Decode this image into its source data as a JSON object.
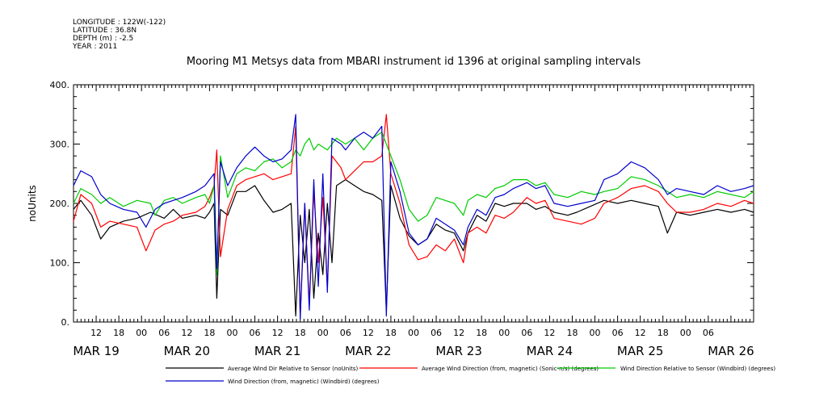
{
  "meta": {
    "longitude": "LONGITUDE : 122W(-122)",
    "latitude": "LATITUDE : 36.8N",
    "depth": "DEPTH (m) : -2.5",
    "year": "YEAR : 2011"
  },
  "chart_data": {
    "type": "line",
    "title": "Mooring M1 Metsys data from MBARI instrument id 1396 at original sampling intervals",
    "ylabel": "noUnits",
    "xlabel": "",
    "ylim": [
      0,
      400
    ],
    "xlim": [
      0,
      7.5
    ],
    "x_unit": "days since MAR 18 at 18h",
    "yticks": [
      "0.",
      "100.",
      "200.",
      "300.",
      "400."
    ],
    "hour_ticks": [
      "12",
      "18",
      "00",
      "06",
      "12",
      "18",
      "00",
      "06",
      "12",
      "18",
      "00",
      "06",
      "12",
      "18",
      "00",
      "06",
      "12",
      "18",
      "00",
      "06",
      "12",
      "18",
      "00",
      "06",
      "12",
      "18",
      "00",
      "06"
    ],
    "day_labels": [
      "MAR 19",
      "MAR 20",
      "MAR 21",
      "MAR 22",
      "MAR 23",
      "MAR 24",
      "MAR 25",
      "MAR 26"
    ],
    "grid": false,
    "legend_position": "bottom",
    "series": [
      {
        "name": "Average Wind Dir Relative to Sensor (noUnits)",
        "color": "#000000",
        "points": [
          [
            0,
            190
          ],
          [
            0.08,
            205
          ],
          [
            0.2,
            180
          ],
          [
            0.3,
            140
          ],
          [
            0.4,
            160
          ],
          [
            0.55,
            170
          ],
          [
            0.7,
            175
          ],
          [
            0.85,
            185
          ],
          [
            1.0,
            175
          ],
          [
            1.1,
            190
          ],
          [
            1.2,
            175
          ],
          [
            1.35,
            180
          ],
          [
            1.45,
            175
          ],
          [
            1.5,
            185
          ],
          [
            1.55,
            200
          ],
          [
            1.58,
            40
          ],
          [
            1.62,
            190
          ],
          [
            1.7,
            180
          ],
          [
            1.8,
            220
          ],
          [
            1.9,
            220
          ],
          [
            2.0,
            230
          ],
          [
            2.1,
            205
          ],
          [
            2.2,
            185
          ],
          [
            2.3,
            190
          ],
          [
            2.4,
            200
          ],
          [
            2.45,
            10
          ],
          [
            2.5,
            180
          ],
          [
            2.55,
            100
          ],
          [
            2.6,
            190
          ],
          [
            2.65,
            40
          ],
          [
            2.7,
            150
          ],
          [
            2.75,
            80
          ],
          [
            2.8,
            200
          ],
          [
            2.85,
            100
          ],
          [
            2.9,
            230
          ],
          [
            3.0,
            240
          ],
          [
            3.1,
            230
          ],
          [
            3.2,
            220
          ],
          [
            3.3,
            215
          ],
          [
            3.4,
            205
          ],
          [
            3.45,
            20
          ],
          [
            3.5,
            230
          ],
          [
            3.6,
            175
          ],
          [
            3.7,
            145
          ],
          [
            3.8,
            130
          ],
          [
            3.9,
            140
          ],
          [
            4.0,
            165
          ],
          [
            4.1,
            155
          ],
          [
            4.2,
            150
          ],
          [
            4.3,
            120
          ],
          [
            4.35,
            150
          ],
          [
            4.45,
            180
          ],
          [
            4.55,
            170
          ],
          [
            4.65,
            200
          ],
          [
            4.75,
            195
          ],
          [
            4.85,
            200
          ],
          [
            5.0,
            200
          ],
          [
            5.1,
            190
          ],
          [
            5.2,
            195
          ],
          [
            5.3,
            185
          ],
          [
            5.45,
            180
          ],
          [
            5.55,
            185
          ],
          [
            5.7,
            195
          ],
          [
            5.85,
            205
          ],
          [
            6.0,
            200
          ],
          [
            6.15,
            205
          ],
          [
            6.3,
            200
          ],
          [
            6.45,
            195
          ],
          [
            6.55,
            150
          ],
          [
            6.65,
            185
          ],
          [
            6.8,
            180
          ],
          [
            6.95,
            185
          ],
          [
            7.1,
            190
          ],
          [
            7.25,
            185
          ],
          [
            7.4,
            190
          ],
          [
            7.5,
            185
          ]
        ]
      },
      {
        "name": "Average Wind Direction (from, magnetic) (Sonic-n/s) (degrees)",
        "color": "#ff0000",
        "points": [
          [
            0,
            170
          ],
          [
            0.08,
            215
          ],
          [
            0.2,
            200
          ],
          [
            0.3,
            160
          ],
          [
            0.4,
            170
          ],
          [
            0.55,
            165
          ],
          [
            0.7,
            160
          ],
          [
            0.8,
            120
          ],
          [
            0.9,
            155
          ],
          [
            1.0,
            165
          ],
          [
            1.1,
            170
          ],
          [
            1.2,
            180
          ],
          [
            1.35,
            185
          ],
          [
            1.45,
            195
          ],
          [
            1.5,
            210
          ],
          [
            1.55,
            230
          ],
          [
            1.58,
            290
          ],
          [
            1.62,
            110
          ],
          [
            1.7,
            190
          ],
          [
            1.8,
            230
          ],
          [
            1.9,
            240
          ],
          [
            2.0,
            245
          ],
          [
            2.1,
            250
          ],
          [
            2.2,
            240
          ],
          [
            2.3,
            245
          ],
          [
            2.4,
            250
          ],
          [
            2.45,
            330
          ],
          [
            2.5,
            10
          ],
          [
            2.55,
            200
          ],
          [
            2.6,
            30
          ],
          [
            2.65,
            220
          ],
          [
            2.7,
            100
          ],
          [
            2.75,
            210
          ],
          [
            2.8,
            60
          ],
          [
            2.85,
            280
          ],
          [
            2.95,
            260
          ],
          [
            3.0,
            240
          ],
          [
            3.1,
            255
          ],
          [
            3.2,
            270
          ],
          [
            3.3,
            270
          ],
          [
            3.4,
            280
          ],
          [
            3.45,
            350
          ],
          [
            3.5,
            250
          ],
          [
            3.6,
            200
          ],
          [
            3.7,
            130
          ],
          [
            3.8,
            105
          ],
          [
            3.9,
            110
          ],
          [
            4.0,
            130
          ],
          [
            4.1,
            120
          ],
          [
            4.2,
            140
          ],
          [
            4.3,
            100
          ],
          [
            4.35,
            150
          ],
          [
            4.45,
            160
          ],
          [
            4.55,
            150
          ],
          [
            4.65,
            180
          ],
          [
            4.75,
            175
          ],
          [
            4.85,
            185
          ],
          [
            5.0,
            210
          ],
          [
            5.1,
            200
          ],
          [
            5.2,
            205
          ],
          [
            5.3,
            175
          ],
          [
            5.45,
            170
          ],
          [
            5.6,
            165
          ],
          [
            5.75,
            175
          ],
          [
            5.85,
            200
          ],
          [
            6.0,
            210
          ],
          [
            6.15,
            225
          ],
          [
            6.3,
            230
          ],
          [
            6.45,
            220
          ],
          [
            6.55,
            200
          ],
          [
            6.65,
            185
          ],
          [
            6.8,
            185
          ],
          [
            6.95,
            190
          ],
          [
            7.1,
            200
          ],
          [
            7.25,
            195
          ],
          [
            7.4,
            205
          ],
          [
            7.5,
            200
          ]
        ]
      },
      {
        "name": "Wind Direction Relative to Sensor (Windbird) (degrees)",
        "color": "#00cc00",
        "points": [
          [
            0,
            200
          ],
          [
            0.08,
            225
          ],
          [
            0.2,
            215
          ],
          [
            0.3,
            200
          ],
          [
            0.4,
            210
          ],
          [
            0.55,
            195
          ],
          [
            0.7,
            205
          ],
          [
            0.85,
            200
          ],
          [
            0.9,
            180
          ],
          [
            1.0,
            205
          ],
          [
            1.1,
            210
          ],
          [
            1.2,
            200
          ],
          [
            1.35,
            210
          ],
          [
            1.45,
            215
          ],
          [
            1.5,
            200
          ],
          [
            1.55,
            230
          ],
          [
            1.58,
            80
          ],
          [
            1.62,
            280
          ],
          [
            1.7,
            210
          ],
          [
            1.8,
            250
          ],
          [
            1.9,
            260
          ],
          [
            2.0,
            255
          ],
          [
            2.1,
            270
          ],
          [
            2.2,
            275
          ],
          [
            2.3,
            260
          ],
          [
            2.4,
            270
          ],
          [
            2.45,
            290
          ],
          [
            2.5,
            280
          ],
          [
            2.55,
            300
          ],
          [
            2.6,
            310
          ],
          [
            2.65,
            290
          ],
          [
            2.7,
            300
          ],
          [
            2.8,
            290
          ],
          [
            2.9,
            310
          ],
          [
            3.0,
            300
          ],
          [
            3.1,
            310
          ],
          [
            3.2,
            290
          ],
          [
            3.3,
            310
          ],
          [
            3.4,
            320
          ],
          [
            3.45,
            300
          ],
          [
            3.5,
            280
          ],
          [
            3.6,
            240
          ],
          [
            3.7,
            190
          ],
          [
            3.8,
            170
          ],
          [
            3.9,
            180
          ],
          [
            4.0,
            210
          ],
          [
            4.1,
            205
          ],
          [
            4.2,
            200
          ],
          [
            4.3,
            180
          ],
          [
            4.35,
            205
          ],
          [
            4.45,
            215
          ],
          [
            4.55,
            210
          ],
          [
            4.65,
            225
          ],
          [
            4.75,
            230
          ],
          [
            4.85,
            240
          ],
          [
            5.0,
            240
          ],
          [
            5.1,
            230
          ],
          [
            5.2,
            235
          ],
          [
            5.3,
            215
          ],
          [
            5.45,
            210
          ],
          [
            5.6,
            220
          ],
          [
            5.75,
            215
          ],
          [
            5.85,
            220
          ],
          [
            6.0,
            225
          ],
          [
            6.15,
            245
          ],
          [
            6.3,
            240
          ],
          [
            6.45,
            230
          ],
          [
            6.55,
            220
          ],
          [
            6.65,
            210
          ],
          [
            6.8,
            215
          ],
          [
            6.95,
            210
          ],
          [
            7.1,
            220
          ],
          [
            7.25,
            215
          ],
          [
            7.4,
            210
          ],
          [
            7.5,
            220
          ]
        ]
      },
      {
        "name": "Wind Direction (from, magnetic) (Windbird) (degrees)",
        "color": "#0000cc",
        "points": [
          [
            0,
            230
          ],
          [
            0.08,
            255
          ],
          [
            0.2,
            245
          ],
          [
            0.3,
            215
          ],
          [
            0.4,
            200
          ],
          [
            0.55,
            190
          ],
          [
            0.7,
            185
          ],
          [
            0.8,
            160
          ],
          [
            0.9,
            190
          ],
          [
            1.0,
            200
          ],
          [
            1.1,
            205
          ],
          [
            1.2,
            210
          ],
          [
            1.35,
            220
          ],
          [
            1.45,
            230
          ],
          [
            1.5,
            240
          ],
          [
            1.55,
            250
          ],
          [
            1.58,
            90
          ],
          [
            1.62,
            270
          ],
          [
            1.7,
            230
          ],
          [
            1.8,
            260
          ],
          [
            1.9,
            280
          ],
          [
            2.0,
            295
          ],
          [
            2.1,
            280
          ],
          [
            2.2,
            270
          ],
          [
            2.3,
            275
          ],
          [
            2.4,
            290
          ],
          [
            2.45,
            350
          ],
          [
            2.5,
            5
          ],
          [
            2.55,
            200
          ],
          [
            2.6,
            20
          ],
          [
            2.65,
            240
          ],
          [
            2.7,
            60
          ],
          [
            2.75,
            250
          ],
          [
            2.8,
            50
          ],
          [
            2.85,
            310
          ],
          [
            2.95,
            300
          ],
          [
            3.0,
            290
          ],
          [
            3.1,
            310
          ],
          [
            3.2,
            320
          ],
          [
            3.3,
            310
          ],
          [
            3.4,
            330
          ],
          [
            3.45,
            10
          ],
          [
            3.5,
            270
          ],
          [
            3.6,
            220
          ],
          [
            3.7,
            150
          ],
          [
            3.8,
            130
          ],
          [
            3.9,
            140
          ],
          [
            4.0,
            175
          ],
          [
            4.1,
            165
          ],
          [
            4.2,
            155
          ],
          [
            4.3,
            130
          ],
          [
            4.35,
            160
          ],
          [
            4.45,
            190
          ],
          [
            4.55,
            180
          ],
          [
            4.65,
            210
          ],
          [
            4.75,
            215
          ],
          [
            4.85,
            225
          ],
          [
            5.0,
            235
          ],
          [
            5.1,
            225
          ],
          [
            5.2,
            230
          ],
          [
            5.3,
            200
          ],
          [
            5.45,
            195
          ],
          [
            5.6,
            200
          ],
          [
            5.75,
            205
          ],
          [
            5.85,
            240
          ],
          [
            6.0,
            250
          ],
          [
            6.15,
            270
          ],
          [
            6.3,
            260
          ],
          [
            6.45,
            240
          ],
          [
            6.55,
            215
          ],
          [
            6.65,
            225
          ],
          [
            6.8,
            220
          ],
          [
            6.95,
            215
          ],
          [
            7.1,
            230
          ],
          [
            7.25,
            220
          ],
          [
            7.4,
            225
          ],
          [
            7.5,
            230
          ]
        ]
      }
    ]
  }
}
